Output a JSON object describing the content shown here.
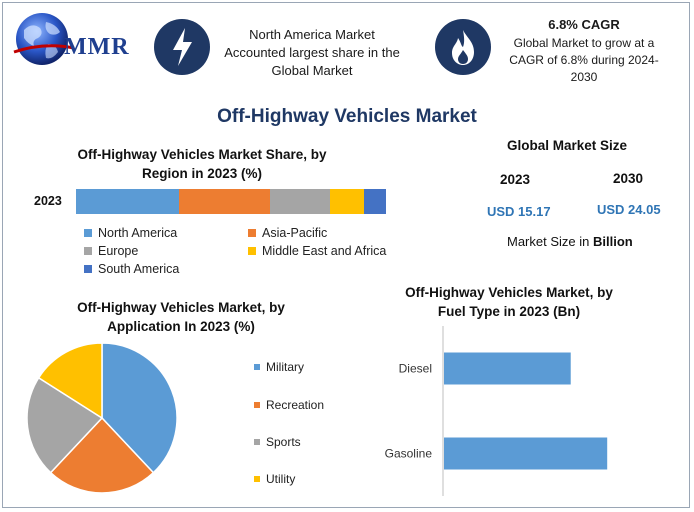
{
  "header": {
    "logo_text": "MMR",
    "logo_icon": "globe-icon",
    "region_icon": "lightning-icon",
    "region_text": [
      "North America Market",
      "Accounted largest share in the",
      "Global Market"
    ],
    "cagr_icon": "flame-icon",
    "cagr_title": "6.8% CAGR",
    "cagr_text": [
      "Global Market to grow at a",
      "CAGR of 6.8% during 2024-",
      "2030"
    ]
  },
  "page_title": "Off-Highway Vehicles Market",
  "market_size": {
    "title": "Global Market Size",
    "year1": "2023",
    "year2": "2030",
    "value1": "USD 15.17",
    "value2": "USD 24.05",
    "note": "Market Size in ",
    "note_bold": "Billion"
  },
  "colors": {
    "blue": "#5b9bd5",
    "orange": "#ed7d31",
    "gray": "#a5a5a5",
    "yellow": "#ffc000",
    "darkblue": "#4472c4",
    "icon_navy": "#1f3864"
  },
  "chart_data": [
    {
      "type": "bar",
      "orientation": "horizontal-stacked",
      "title": [
        "Off-Highway Vehicles Market Share, by",
        "Region in 2023 (%)"
      ],
      "categories": [
        "2023"
      ],
      "series": [
        {
          "name": "North America",
          "values": [
            33
          ],
          "color": "#5b9bd5"
        },
        {
          "name": "Asia-Pacific",
          "values": [
            29
          ],
          "color": "#ed7d31"
        },
        {
          "name": "Europe",
          "values": [
            19
          ],
          "color": "#a5a5a5"
        },
        {
          "name": "Middle East and Africa",
          "values": [
            11
          ],
          "color": "#ffc000"
        },
        {
          "name": "South America",
          "values": [
            7
          ],
          "color": "#4472c4"
        }
      ],
      "xlim": [
        0,
        100
      ],
      "legend": "bottom"
    },
    {
      "type": "pie",
      "title": [
        "Off-Highway Vehicles Market, by",
        "Application In 2023 (%)"
      ],
      "slices": [
        {
          "name": "Military",
          "value": 38,
          "color": "#5b9bd5"
        },
        {
          "name": "Recreation",
          "value": 24,
          "color": "#ed7d31"
        },
        {
          "name": "Sports",
          "value": 22,
          "color": "#a5a5a5"
        },
        {
          "name": "Utility",
          "value": 16,
          "color": "#ffc000"
        }
      ],
      "legend": "right"
    },
    {
      "type": "bar",
      "orientation": "horizontal",
      "title": [
        "Off-Highway Vehicles Market, by",
        "Fuel Type in 2023 (Bn)"
      ],
      "categories": [
        "Diesel",
        "Gasoline"
      ],
      "values": [
        6.6,
        8.5
      ],
      "xlim": [
        0,
        10
      ],
      "color": "#5b9bd5",
      "grid": false
    }
  ]
}
